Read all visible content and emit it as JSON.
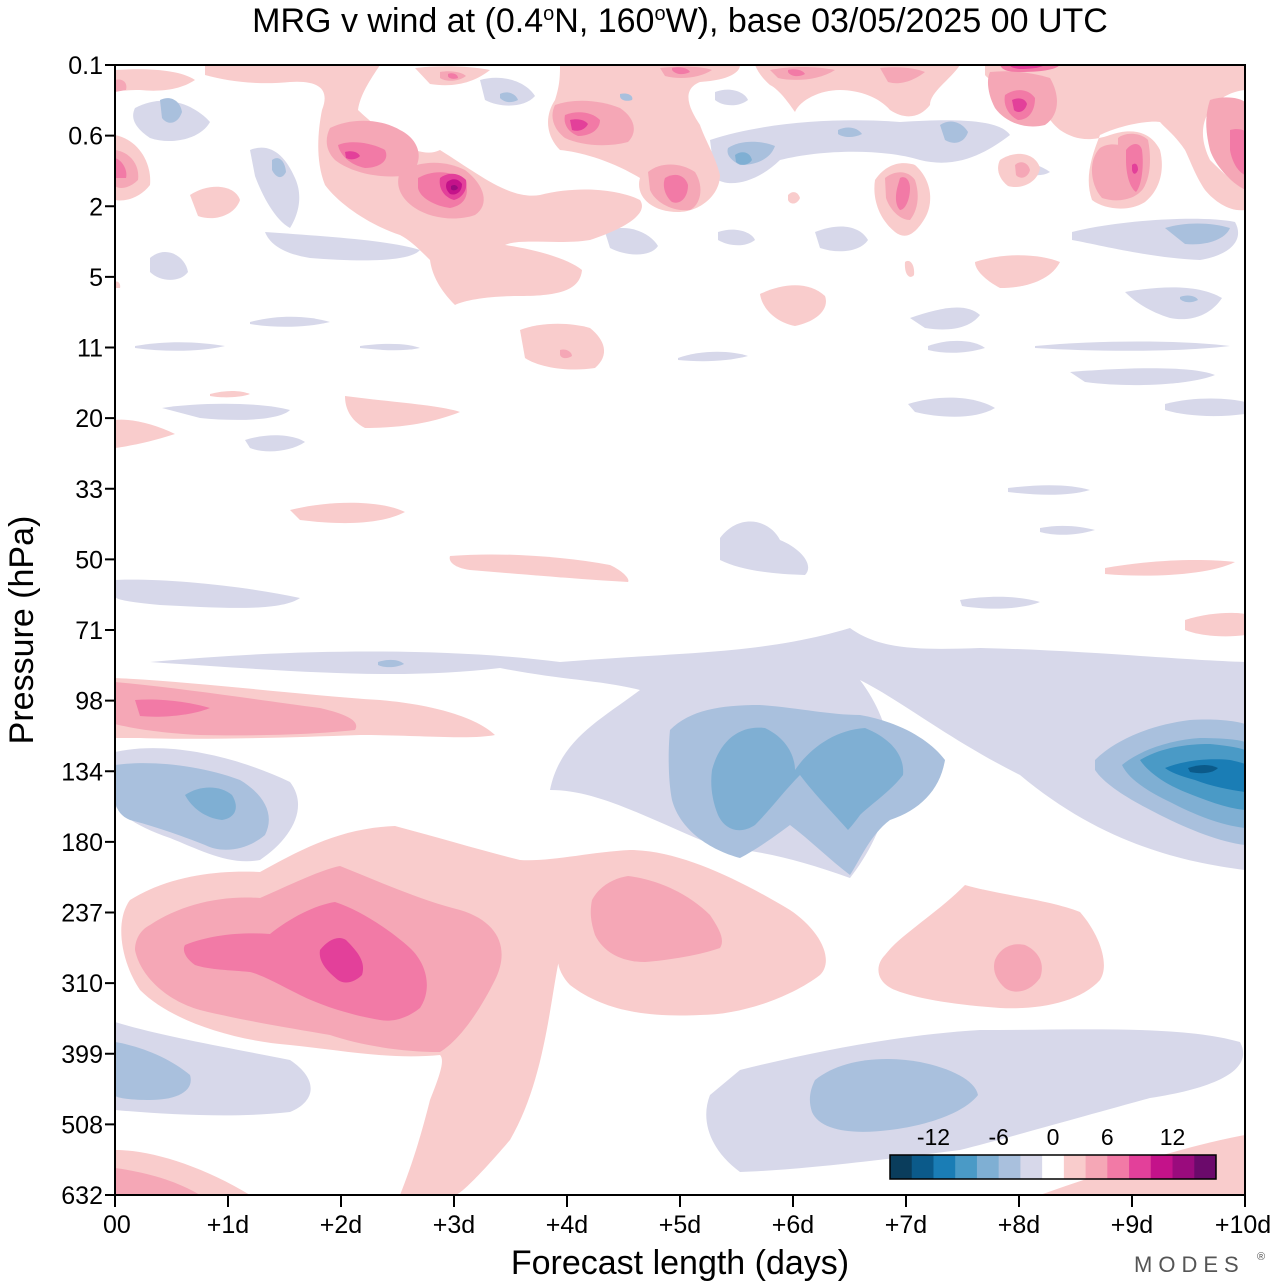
{
  "chart_data": {
    "type": "contour",
    "title": {
      "prefix": "MRG v wind at (0.4",
      "deg1": "o",
      "mid": "N, 160",
      "deg2": "o",
      "suffix": "W),  base 03/05/2025  00 UTC"
    },
    "xlabel": "Forecast length (days)",
    "ylabel": "Pressure (hPa)",
    "x_ticks": [
      "00",
      "+1d",
      "+2d",
      "+3d",
      "+4d",
      "+5d",
      "+6d",
      "+7d",
      "+8d",
      "+9d",
      "+10d"
    ],
    "x_range_days": [
      0,
      10
    ],
    "y_ticks": [
      "0.1",
      "0.6",
      "2",
      "5",
      "11",
      "20",
      "33",
      "50",
      "71",
      "98",
      "134",
      "180",
      "237",
      "310",
      "399",
      "508",
      "632"
    ],
    "y_scale": "log-pressure (top = 0.1 hPa, bottom = 632 hPa)",
    "colorbar": {
      "labels": [
        "-12",
        "-6",
        "0",
        "6",
        "12"
      ],
      "levels": [
        -16,
        -14,
        -12,
        -10,
        -8,
        -6,
        -4,
        -2,
        2,
        4,
        6,
        8,
        10,
        12,
        14,
        16
      ],
      "colors": [
        "#0a3d5c",
        "#0b5a8a",
        "#1a7db5",
        "#4a9ac6",
        "#7fafd3",
        "#a9c0dd",
        "#d7d8ea",
        "#ffffff",
        "#f9cccc",
        "#f5a7b6",
        "#f27aa6",
        "#e3409a",
        "#c4128a",
        "#9a0b7d",
        "#6b0a6b"
      ]
    },
    "features": [
      {
        "name": "positive anomaly centre",
        "day": 0.5,
        "pressure_hPa": 98,
        "value": 8
      },
      {
        "name": "negative anomaly centre",
        "day": 1.0,
        "pressure_hPa": 134,
        "value": -6
      },
      {
        "name": "positive anomaly centre",
        "day": 2.0,
        "pressure_hPa": 300,
        "value": 10
      },
      {
        "name": "positive anomaly centre",
        "day": 3.0,
        "pressure_hPa": 1.6,
        "value": 12
      },
      {
        "name": "positive anomaly centre",
        "day": 3.7,
        "pressure_hPa": 260,
        "value": 4
      },
      {
        "name": "negative anomaly centre",
        "day": 5.6,
        "pressure_hPa": 134,
        "value": -6
      },
      {
        "name": "negative anomaly centre",
        "day": 6.5,
        "pressure_hPa": 134,
        "value": -6
      },
      {
        "name": "negative anomaly centre",
        "day": 9.8,
        "pressure_hPa": 134,
        "value": -12
      },
      {
        "name": "negative anomaly centre",
        "day": 6.9,
        "pressure_hPa": 480,
        "value": -4
      },
      {
        "name": "positive anomaly centre",
        "day": 8.0,
        "pressure_hPa": 310,
        "value": 4
      },
      {
        "name": "negative anomaly centre",
        "day": 0.5,
        "pressure_hPa": 430,
        "value": -4
      }
    ]
  },
  "branding": {
    "text": "MODES",
    "mark": "®"
  }
}
